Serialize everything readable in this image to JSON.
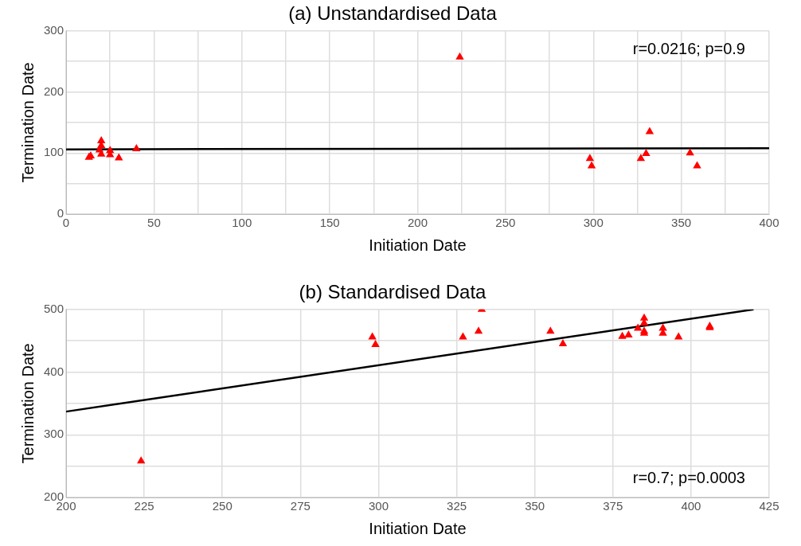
{
  "chart_data": [
    {
      "type": "scatter",
      "title": "(a) Unstandardised Data",
      "xlabel": "Initiation Date",
      "ylabel": "Termination Date",
      "series": [
        {
          "color": "#ff0000",
          "marker": "triangle",
          "x": [
            13,
            14,
            19,
            20,
            20,
            20,
            25,
            25,
            30,
            40,
            224,
            298,
            299,
            327,
            330,
            332,
            355,
            359
          ],
          "values": [
            93,
            95,
            105,
            120,
            112,
            98,
            104,
            97,
            92,
            107,
            257,
            91,
            79,
            91,
            99,
            135,
            100,
            79
          ]
        },
        {
          "type": "line",
          "color": "#000000",
          "marker": "none",
          "x": [
            0,
            400
          ],
          "values": [
            106,
            108
          ]
        }
      ],
      "xlim": [
        0,
        400
      ],
      "xticks": [
        0,
        {
          "value": 25,
          "label": null
        },
        50,
        {
          "value": 75,
          "label": null
        },
        100,
        {
          "value": 125,
          "label": null
        },
        150,
        {
          "value": 175,
          "label": null
        },
        200,
        {
          "value": 225,
          "label": null
        },
        250,
        {
          "value": 275,
          "label": null
        },
        300,
        {
          "value": 325,
          "label": null
        },
        350,
        {
          "value": 375,
          "label": null
        },
        400
      ],
      "ylim": [
        0,
        300
      ],
      "yticks": [
        0,
        {
          "value": 50,
          "label": null
        },
        100,
        {
          "value": 150,
          "label": null
        },
        200,
        {
          "value": 250,
          "label": null
        },
        300
      ],
      "grid": true,
      "legend": false,
      "annotations": [
        "r=0.0216; p=0.9"
      ]
    },
    {
      "type": "scatter",
      "title": "(b) Standardised Data",
      "xlabel": "Initiation Date",
      "ylabel": "Termination Date",
      "series": [
        {
          "color": "#ff0000",
          "marker": "triangle",
          "x": [
            224,
            298,
            299,
            327,
            332,
            333,
            355,
            359,
            378,
            380,
            383,
            385,
            385,
            385,
            385,
            391,
            391,
            396,
            406,
            406
          ],
          "values": [
            258,
            456,
            444,
            456,
            465,
            500,
            465,
            445,
            457,
            459,
            470,
            486,
            478,
            465,
            462,
            470,
            462,
            456,
            473,
            471
          ]
        },
        {
          "type": "line",
          "color": "#000000",
          "marker": "none",
          "x": [
            200,
            420
          ],
          "values": [
            337,
            500
          ]
        }
      ],
      "xlim": [
        200,
        425
      ],
      "xticks": [
        200,
        225,
        250,
        275,
        300,
        325,
        350,
        375,
        400,
        425
      ],
      "ylim": [
        200,
        500
      ],
      "yticks": [
        200,
        {
          "value": 250,
          "label": null
        },
        300,
        {
          "value": 350,
          "label": null
        },
        400,
        {
          "value": 450,
          "label": null
        },
        500
      ],
      "grid": true,
      "legend": false,
      "annotations": [
        "r=0.7; p=0.0003"
      ]
    }
  ]
}
